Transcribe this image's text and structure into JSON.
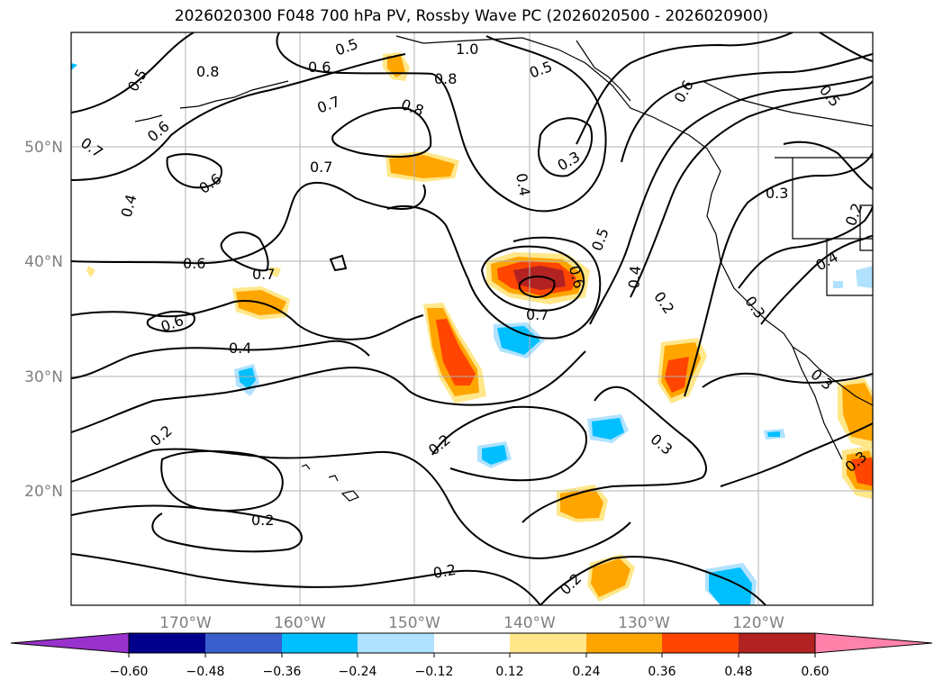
{
  "title": "2026020300 F048 700 hPa PV, Rossby Wave PC (2026020500 - 2026020900)",
  "lat_ticks": [
    "50°N",
    "40°N",
    "30°N",
    "20°N"
  ],
  "lon_ticks": [
    "170°W",
    "160°W",
    "150°W",
    "140°W",
    "130°W",
    "120°W"
  ],
  "contour_labels": [
    "0.5",
    "0.8",
    "0.6",
    "0.5",
    "1.0",
    "0.8",
    "0.5",
    "0.6",
    "0.3",
    "0.4",
    "0.5",
    "0.7",
    "0.8",
    "0.6",
    "0.7",
    "0.6",
    "0.7",
    "0.3",
    "0.4",
    "0.2",
    "0.6",
    "0.6",
    "0.7",
    "0.5",
    "0.4",
    "0.6",
    "0.4",
    "0.4",
    "0.7",
    "0.3",
    "0.2",
    "0.3",
    "0.3",
    "0.2",
    "0.2",
    "0.3",
    "0.2",
    "0.2",
    "0.2"
  ],
  "colorbar": {
    "ticks": [
      "−0.60",
      "−0.48",
      "−0.36",
      "−0.24",
      "−0.12",
      "0.12",
      "0.24",
      "0.36",
      "0.48",
      "0.60"
    ],
    "colors": [
      "#9932cc",
      "#00008b",
      "#3a5fcd",
      "#00bfff",
      "#b0e2ff",
      "#ffffff",
      "#ffe78a",
      "#ffa500",
      "#ff4500",
      "#b22222",
      "#ff82ab"
    ]
  }
}
